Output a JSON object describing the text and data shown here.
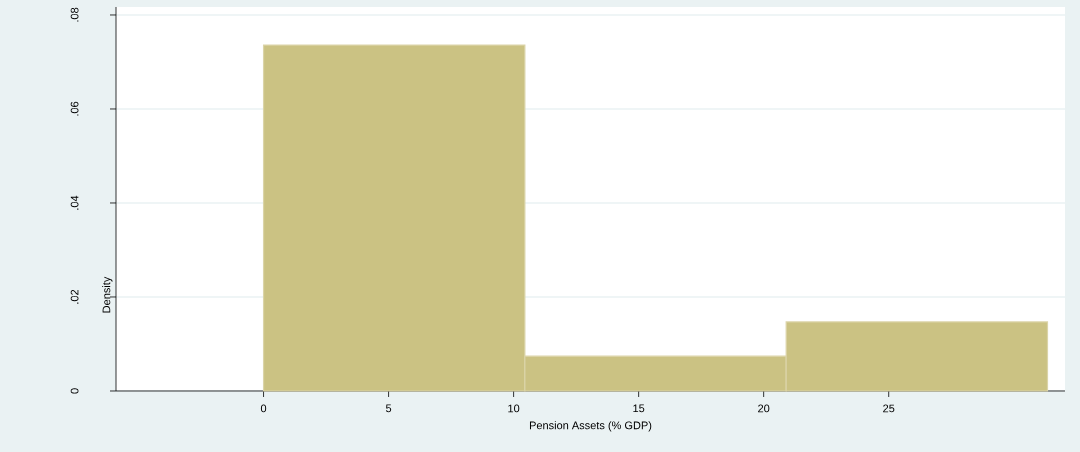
{
  "chart_data": {
    "type": "histogram",
    "xlabel": "Pension Assets (% GDP)",
    "ylabel": "Density",
    "bins": [
      0,
      10.45,
      20.9,
      31.35
    ],
    "values": [
      0.0736,
      0.0074,
      0.0147
    ],
    "color": "#cbc283",
    "xlim": [
      -5.9,
      32.05
    ],
    "ylim": [
      0,
      0.0817
    ],
    "xticks": [
      0,
      5,
      10,
      15,
      20,
      25
    ],
    "yticks": [
      0,
      {
        "value": 0.02,
        "label": ".02"
      },
      {
        "value": 0.04,
        "label": ".04"
      },
      {
        "value": 0.06,
        "label": ".06"
      },
      {
        "value": 0.08,
        "label": ".08"
      }
    ],
    "grid": "y"
  }
}
